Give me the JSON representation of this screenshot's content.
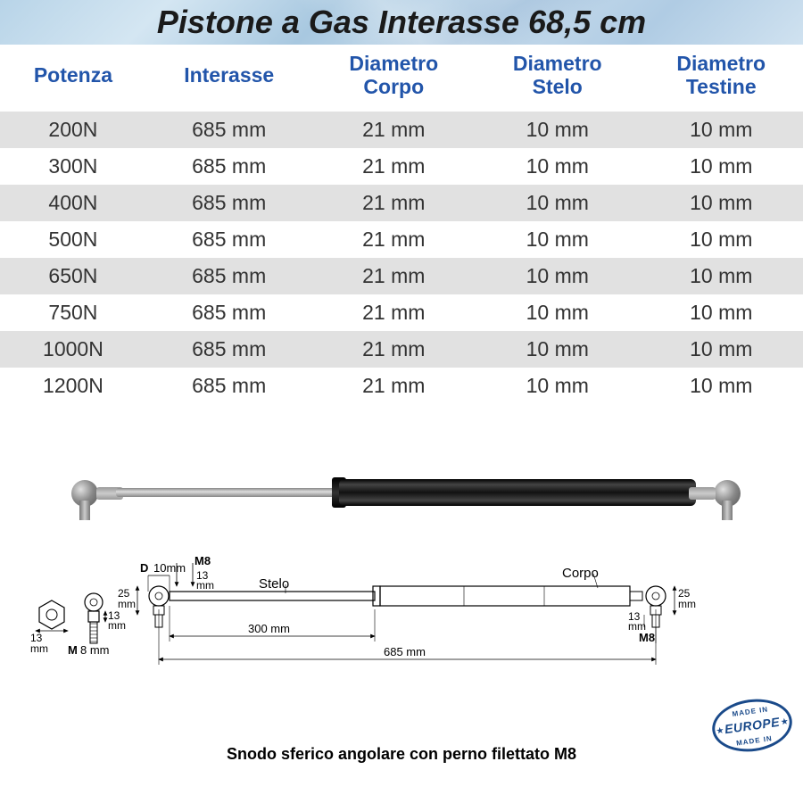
{
  "title": "Pistone a Gas Interasse  68,5 cm",
  "table": {
    "header_color": "#2255aa",
    "columns": [
      {
        "label": "Potenza"
      },
      {
        "label": "Interasse"
      },
      {
        "label": "Diametro\nCorpo"
      },
      {
        "label": "Diametro\nStelo"
      },
      {
        "label": "Diametro\nTestine"
      }
    ],
    "rows": [
      [
        "200N",
        "685 mm",
        "21 mm",
        "10 mm",
        "10 mm"
      ],
      [
        "300N",
        "685 mm",
        "21 mm",
        "10 mm",
        "10 mm"
      ],
      [
        "400N",
        "685 mm",
        "21 mm",
        "10 mm",
        "10 mm"
      ],
      [
        "500N",
        "685 mm",
        "21 mm",
        "10 mm",
        "10 mm"
      ],
      [
        "650N",
        "685 mm",
        "21 mm",
        "10 mm",
        "10 mm"
      ],
      [
        "750N",
        "685 mm",
        "21 mm",
        "10 mm",
        "10 mm"
      ],
      [
        "1000N",
        "685 mm",
        "21 mm",
        "10 mm",
        "10 mm"
      ],
      [
        "1200N",
        "685 mm",
        "21 mm",
        "10 mm",
        "10 mm"
      ]
    ],
    "row_odd_bg": "#e1e1e1",
    "row_even_bg": "#ffffff"
  },
  "diagram": {
    "labels": {
      "stelo": "Stelo",
      "corpo": "Corpo",
      "d_label": "D",
      "d_value": "10mm",
      "m8": "M8",
      "dim_13": "13",
      "mm": "mm",
      "dim_25": "25",
      "dim_300": "300 mm",
      "dim_685": "685 mm",
      "m_label": "M",
      "m_value": "8 mm"
    },
    "caption": "Snodo sferico angolare con perno filettato M8"
  },
  "badge": {
    "top": "MADE IN",
    "main": "EUROPE",
    "bottom": "MADE IN"
  },
  "colors": {
    "title_text": "#1a1a1a",
    "body_text": "#333333",
    "badge_color": "#1a4a8a",
    "background": "#ffffff"
  }
}
